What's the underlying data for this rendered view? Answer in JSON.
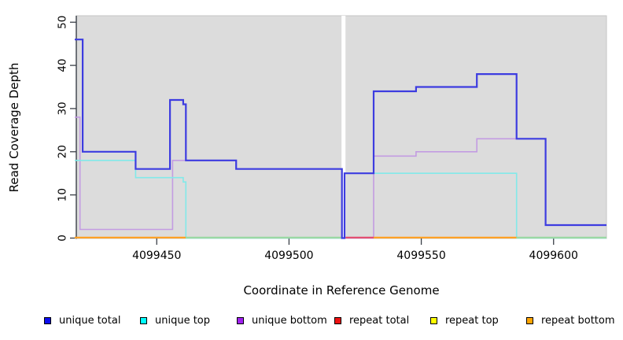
{
  "figure": {
    "xlabel": "Coordinate in Reference Genome",
    "ylabel": "Read Coverage Depth"
  },
  "legend": {
    "items": [
      {
        "label": "unique total"
      },
      {
        "label": "unique top"
      },
      {
        "label": "unique bottom"
      },
      {
        "label": "repeat total"
      },
      {
        "label": "repeat top"
      },
      {
        "label": "repeat bottom"
      }
    ]
  },
  "chart_data": {
    "type": "line",
    "subtype": "step-coverage-plot",
    "title": "",
    "xlabel": "Coordinate in Reference Genome",
    "ylabel": "Read Coverage Depth",
    "x_domain": [
      4099419,
      4099620
    ],
    "y_domain": [
      0,
      51.5
    ],
    "x_ticks": [
      4099450,
      4099500,
      4099550,
      4099600
    ],
    "y_ticks": [
      0,
      10,
      20,
      30,
      40,
      50
    ],
    "plot_bg_color": "#dcdcdc",
    "gap_band": {
      "from": 4099519.85,
      "to": 4099521.35,
      "color": "#ffffff"
    },
    "series": [
      {
        "name": "unique total",
        "color": "#3d3ce0",
        "legend_color": "#0d0dee",
        "points": [
          [
            4099419,
            46
          ],
          [
            4099422,
            46
          ],
          [
            4099422,
            20
          ],
          [
            4099442,
            20
          ],
          [
            4099442,
            16
          ],
          [
            4099455,
            16
          ],
          [
            4099455,
            32
          ],
          [
            4099460,
            32
          ],
          [
            4099460,
            31
          ],
          [
            4099461,
            31
          ],
          [
            4099461,
            18
          ],
          [
            4099480,
            18
          ],
          [
            4099480,
            16
          ],
          [
            4099520,
            16
          ],
          [
            4099520,
            0
          ],
          [
            4099521,
            0
          ],
          [
            4099521,
            15
          ],
          [
            4099532,
            15
          ],
          [
            4099532,
            34
          ],
          [
            4099548,
            34
          ],
          [
            4099548,
            35
          ],
          [
            4099571,
            35
          ],
          [
            4099571,
            38
          ],
          [
            4099586,
            38
          ],
          [
            4099586,
            23
          ],
          [
            4099597,
            23
          ],
          [
            4099597,
            3
          ],
          [
            4099620,
            3
          ]
        ]
      },
      {
        "name": "unique top",
        "color": "#82e9e9",
        "legend_color": "#00ffff",
        "points": [
          [
            4099419,
            18
          ],
          [
            4099442,
            18
          ],
          [
            4099442,
            14
          ],
          [
            4099460,
            14
          ],
          [
            4099460,
            13
          ],
          [
            4099461,
            13
          ],
          [
            4099461,
            0
          ],
          [
            4099520,
            0
          ],
          [
            4099521,
            0
          ],
          [
            4099521,
            15
          ],
          [
            4099586,
            15
          ],
          [
            4099586,
            0
          ],
          [
            4099620,
            0
          ]
        ]
      },
      {
        "name": "unique bottom",
        "color": "#c39ce2",
        "legend_color": "#a020f0",
        "points": [
          [
            4099419,
            28
          ],
          [
            4099421,
            28
          ],
          [
            4099421,
            2
          ],
          [
            4099456,
            2
          ],
          [
            4099456,
            18
          ],
          [
            4099480,
            18
          ],
          [
            4099480,
            16
          ],
          [
            4099520,
            16
          ],
          [
            4099520,
            0
          ],
          [
            4099532,
            0
          ],
          [
            4099532,
            19
          ],
          [
            4099548,
            19
          ],
          [
            4099548,
            20
          ],
          [
            4099571,
            20
          ],
          [
            4099571,
            23
          ],
          [
            4099597,
            23
          ],
          [
            4099597,
            3
          ],
          [
            4099620,
            3
          ]
        ]
      },
      {
        "name": "repeat total",
        "color": "#e34f72",
        "legend_color": "#ee1111",
        "points": [
          [
            4099419,
            0
          ],
          [
            4099520,
            0
          ],
          [
            4099521,
            0
          ],
          [
            4099620,
            0
          ]
        ]
      },
      {
        "name": "repeat top",
        "color": "#f5f264",
        "legend_color": "#ffff00",
        "points": [
          [
            4099419,
            0
          ],
          [
            4099520,
            0
          ],
          [
            4099521,
            0
          ],
          [
            4099620,
            0
          ]
        ]
      },
      {
        "name": "repeat bottom",
        "color": "#ffa126",
        "legend_color": "#ffa500",
        "points": [
          [
            4099419,
            0
          ],
          [
            4099520,
            0
          ],
          [
            4099521,
            0
          ],
          [
            4099620,
            0
          ]
        ]
      }
    ],
    "baseline_segments": [
      {
        "from": 4099419,
        "to": 4099461,
        "color": "#ffa126"
      },
      {
        "from": 4099461,
        "to": 4099519.85,
        "color": "#9ad8a4"
      },
      {
        "from": 4099521.35,
        "to": 4099532,
        "color": "#e34f72"
      },
      {
        "from": 4099532,
        "to": 4099586,
        "color": "#ffa126"
      },
      {
        "from": 4099586,
        "to": 4099620,
        "color": "#9ad8a4"
      }
    ],
    "draw_order_bottom_to_top": [
      "unique bottom",
      "unique top",
      "baseline_segments",
      "unique total"
    ],
    "legend_position": "bottom",
    "grid": false
  }
}
